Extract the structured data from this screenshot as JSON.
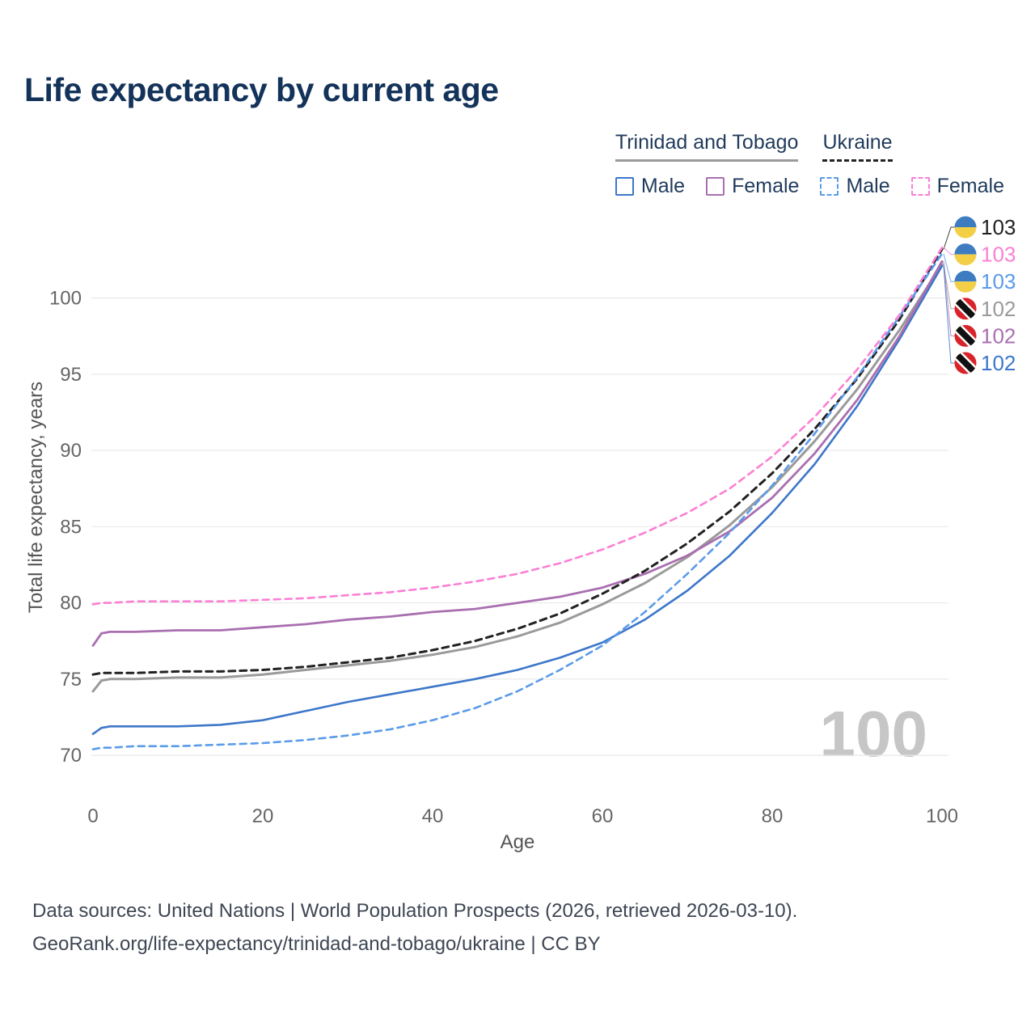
{
  "title": "Life expectancy by current age",
  "legend": {
    "groups": [
      {
        "label": "Trinidad and Tobago"
      },
      {
        "label": "Ukraine"
      }
    ],
    "series": [
      {
        "label": "Male"
      },
      {
        "label": "Female"
      },
      {
        "label": "Male"
      },
      {
        "label": "Female"
      }
    ]
  },
  "axes": {
    "x_label": "Age",
    "y_label": "Total life expectancy, years"
  },
  "watermark": "100",
  "footer": {
    "line1": "Data sources: United Nations | World Population Prospects (2026, retrieved 2026-03-10).",
    "line2": "GeoRank.org/life-expectancy/trinidad-and-tobago/ukraine | CC BY"
  },
  "chart_data": {
    "type": "line",
    "title": "Life expectancy by current age",
    "xlabel": "Age",
    "ylabel": "Total life expectancy, years",
    "xlim": [
      0,
      100
    ],
    "ylim_display": [
      67.3,
      104.8
    ],
    "xticks": [
      0,
      20,
      40,
      60,
      80,
      100
    ],
    "yticks": [
      70,
      75,
      80,
      85,
      90,
      95,
      100
    ],
    "grid": "horizontal",
    "legend_position": "top-right",
    "ages": [
      0,
      1,
      2,
      5,
      10,
      15,
      20,
      25,
      30,
      35,
      40,
      45,
      50,
      55,
      60,
      65,
      70,
      75,
      80,
      85,
      90,
      95,
      100
    ],
    "series": [
      {
        "name": "Trinidad and Tobago — All",
        "color": "#9a9a9a",
        "dash": false,
        "width": 3,
        "values": [
          74.2,
          74.9,
          75.0,
          75.0,
          75.1,
          75.1,
          75.3,
          75.6,
          75.9,
          76.2,
          76.6,
          77.1,
          77.8,
          78.7,
          79.9,
          81.3,
          83.0,
          85.1,
          87.6,
          90.6,
          94.0,
          97.9,
          102.2
        ]
      },
      {
        "name": "Trinidad and Tobago — Male",
        "color": "#3d77c9",
        "dash": false,
        "width": 2.6,
        "values": [
          71.4,
          71.8,
          71.9,
          71.9,
          71.9,
          72.0,
          72.3,
          72.9,
          73.5,
          74.0,
          74.5,
          75.0,
          75.6,
          76.4,
          77.4,
          78.9,
          80.8,
          83.1,
          85.9,
          89.1,
          92.9,
          97.3,
          102.1
        ]
      },
      {
        "name": "Trinidad and Tobago — Female",
        "color": "#a96fb0",
        "dash": false,
        "width": 2.8,
        "values": [
          77.2,
          78.0,
          78.1,
          78.1,
          78.2,
          78.2,
          78.4,
          78.6,
          78.9,
          79.1,
          79.4,
          79.6,
          80.0,
          80.4,
          81.0,
          81.9,
          83.1,
          84.7,
          86.9,
          89.8,
          93.3,
          97.5,
          102.4
        ]
      },
      {
        "name": "Ukraine — All",
        "color": "#222222",
        "dash": true,
        "width": 3,
        "values": [
          75.3,
          75.4,
          75.4,
          75.4,
          75.5,
          75.5,
          75.6,
          75.8,
          76.1,
          76.4,
          76.9,
          77.5,
          78.3,
          79.3,
          80.6,
          82.1,
          83.9,
          86.0,
          88.5,
          91.4,
          94.7,
          98.6,
          103.2
        ]
      },
      {
        "name": "Ukraine — Male",
        "color": "#5a9bea",
        "dash": true,
        "width": 2.6,
        "values": [
          70.4,
          70.5,
          70.5,
          70.6,
          70.6,
          70.7,
          70.8,
          71.0,
          71.3,
          71.7,
          72.3,
          73.1,
          74.2,
          75.6,
          77.2,
          79.4,
          81.9,
          84.6,
          87.7,
          91.1,
          94.8,
          98.8,
          102.9
        ]
      },
      {
        "name": "Ukraine — Female",
        "color": "#fb7fd4",
        "dash": true,
        "width": 2.6,
        "values": [
          79.9,
          80.0,
          80.0,
          80.1,
          80.1,
          80.1,
          80.2,
          80.3,
          80.5,
          80.7,
          81.0,
          81.4,
          81.9,
          82.6,
          83.5,
          84.6,
          85.9,
          87.5,
          89.6,
          92.2,
          95.3,
          98.9,
          103.3
        ]
      }
    ],
    "end_labels": [
      {
        "value": "103",
        "color": "#222222",
        "flag": "ukraine",
        "series": 3
      },
      {
        "value": "103",
        "color": "#fb7fd4",
        "flag": "ukraine",
        "series": 5
      },
      {
        "value": "103",
        "color": "#5a9bea",
        "flag": "ukraine",
        "series": 4
      },
      {
        "value": "102",
        "color": "#9a9a9a",
        "flag": "trinidad",
        "series": 0
      },
      {
        "value": "102",
        "color": "#a96fb0",
        "flag": "trinidad",
        "series": 2
      },
      {
        "value": "102",
        "color": "#3d77c9",
        "flag": "trinidad",
        "series": 1
      }
    ],
    "flag_colors": {
      "ukraine_blue": "#3e7cc1",
      "ukraine_yellow": "#f3cf45",
      "trinidad_red": "#d8232a",
      "trinidad_black": "#111111",
      "trinidad_white": "#ffffff"
    }
  }
}
